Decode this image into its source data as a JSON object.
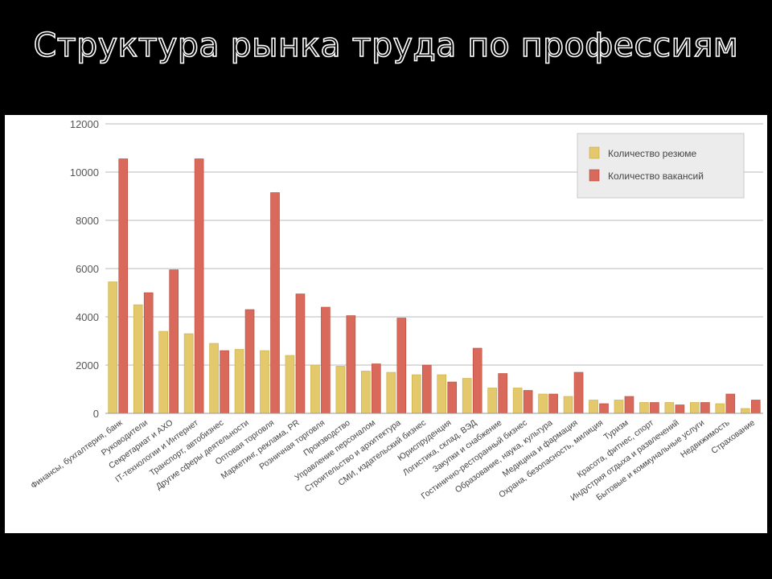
{
  "slide": {
    "title": "Структура рынка труда по профессиям"
  },
  "chart_data": {
    "type": "bar",
    "title": "",
    "xlabel": "",
    "ylabel": "",
    "ylim": [
      0,
      12000
    ],
    "yticks": [
      0,
      2000,
      4000,
      6000,
      8000,
      10000,
      12000
    ],
    "grid": true,
    "legend_position": "top-right",
    "colors": {
      "resume": "#e3c96b",
      "vacancy": "#d9695a",
      "grid": "#b9b9b9"
    },
    "categories": [
      "Финансы, бухгалтерия, банк",
      "Руководители",
      "Секретариат и АХО",
      "IT-технологии и Интернет",
      "Транспорт, автобизнес",
      "Другие сферы деятельности",
      "Оптовая торговля",
      "Маркетинг, реклама, PR",
      "Розничная торговля",
      "Производство",
      "Управление персоналом",
      "Строительство и архитектура",
      "СМИ, издательский бизнес",
      "Юриспруденция",
      "Логистика, склад, ВЭД",
      "Закупки и снабжение",
      "Гостинично-ресторанный бизнес",
      "Образование, наука, культура",
      "Медицина и фармация",
      "Охрана, безопасность, милиция",
      "Туризм",
      "Красота, фитнес, спорт",
      "Индустрия отдыха и развлечений",
      "Бытовые и коммунальные услуги",
      "Недвижимость",
      "Страхование"
    ],
    "series": [
      {
        "name": "Количество резюме",
        "values": [
          5450,
          4500,
          3400,
          3300,
          2900,
          2650,
          2600,
          2400,
          2000,
          1950,
          1750,
          1700,
          1600,
          1600,
          1450,
          1050,
          1050,
          800,
          700,
          550,
          550,
          450,
          450,
          450,
          400,
          200
        ]
      },
      {
        "name": "Количество вакансий",
        "values": [
          10550,
          5000,
          5950,
          10550,
          2600,
          4300,
          9150,
          4950,
          4400,
          4050,
          2050,
          3950,
          2000,
          1300,
          2700,
          1650,
          950,
          800,
          1700,
          400,
          700,
          450,
          350,
          450,
          800,
          550
        ]
      }
    ]
  }
}
